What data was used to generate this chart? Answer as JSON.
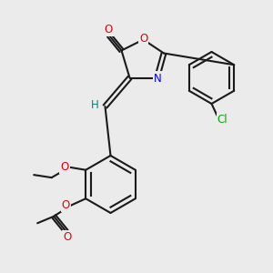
{
  "bg_color": "#ebebeb",
  "bond_color": "#1a1a1a",
  "lw": 1.5,
  "lw2": 1.2,
  "atom_colors": {
    "O": "#e8000d",
    "N": "#0000ff",
    "Cl": "#00aa00",
    "H": "#008080",
    "C": "#1a1a1a"
  },
  "font_size": 8.5
}
